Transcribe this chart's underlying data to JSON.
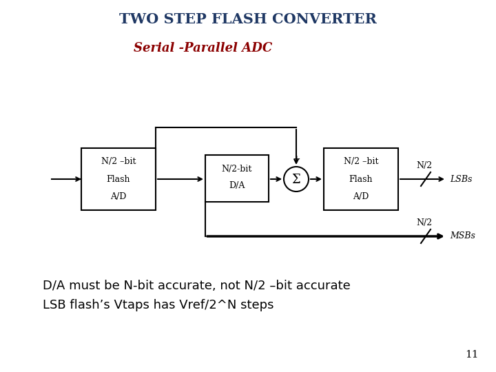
{
  "title": "TWO STEP FLASH CONVERTER",
  "subtitle": "Serial -Parallel ADC",
  "title_color": "#1F3864",
  "subtitle_color": "#8B0000",
  "box1_lines": [
    "N/2 –bit",
    "Flash",
    "A/D"
  ],
  "box2_lines": [
    "N/2-bit",
    "D/A"
  ],
  "box3_lines": [
    "N/2 –bit",
    "Flash",
    "A/D"
  ],
  "sum_symbol": "Σ",
  "lsb_label": "LSBs",
  "msb_label": "MSBs",
  "n2_label": "N/2",
  "body_text_line1": "D/A must be N-bit accurate, not N/2 –bit accurate",
  "body_text_line2": "LSB flash’s Vtaps has Vref/2^N steps",
  "page_number": "11",
  "bg_color": "#ffffff",
  "box_edge_color": "#000000",
  "line_color": "#000000",
  "text_color": "#000000",
  "title_fontsize": 15,
  "subtitle_fontsize": 13,
  "body_fontsize": 13
}
